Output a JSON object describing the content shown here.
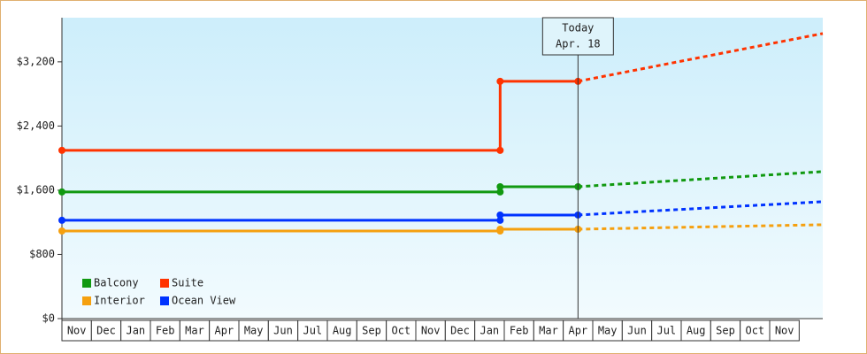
{
  "chart_data": {
    "type": "line",
    "categories": [
      "Nov",
      "Dec",
      "Jan",
      "Feb",
      "Mar",
      "Apr",
      "May",
      "Jun",
      "Jul",
      "Aug",
      "Sep",
      "Oct",
      "Nov",
      "Dec",
      "Jan",
      "Feb",
      "Mar",
      "Apr",
      "May",
      "Jun",
      "Jul",
      "Aug",
      "Sep",
      "Oct",
      "Nov"
    ],
    "x": [
      0,
      14.86,
      14.86,
      17.5
    ],
    "forecast_x": [
      17.5,
      25.8
    ],
    "xlim": [
      0,
      25.8
    ],
    "ylim": [
      0,
      3750
    ],
    "yticks": [
      {
        "value": 0,
        "label": "$0"
      },
      {
        "value": 800,
        "label": "$800"
      },
      {
        "value": 1600,
        "label": "$1,600"
      },
      {
        "value": 2400,
        "label": "$2,400"
      },
      {
        "value": 3200,
        "label": "$3,200"
      }
    ],
    "series": [
      {
        "name": "Balcony",
        "color": "#119911",
        "values": [
          1578,
          1578,
          1644,
          1644
        ],
        "forecast": [
          1644,
          1832
        ]
      },
      {
        "name": "Suite",
        "color": "#ff3300",
        "values": [
          2097,
          2097,
          2957,
          2957
        ],
        "forecast": [
          2957,
          3553
        ]
      },
      {
        "name": "Interior",
        "color": "#f5a00f",
        "values": [
          1092,
          1092,
          1114,
          1114
        ],
        "forecast": [
          1114,
          1170
        ]
      },
      {
        "name": "Ocean View",
        "color": "#0033ff",
        "values": [
          1225,
          1225,
          1291,
          1291
        ],
        "forecast": [
          1291,
          1457
        ]
      }
    ],
    "annotation": {
      "text": [
        "Today",
        "Apr. 18"
      ],
      "x": 17.5
    }
  }
}
